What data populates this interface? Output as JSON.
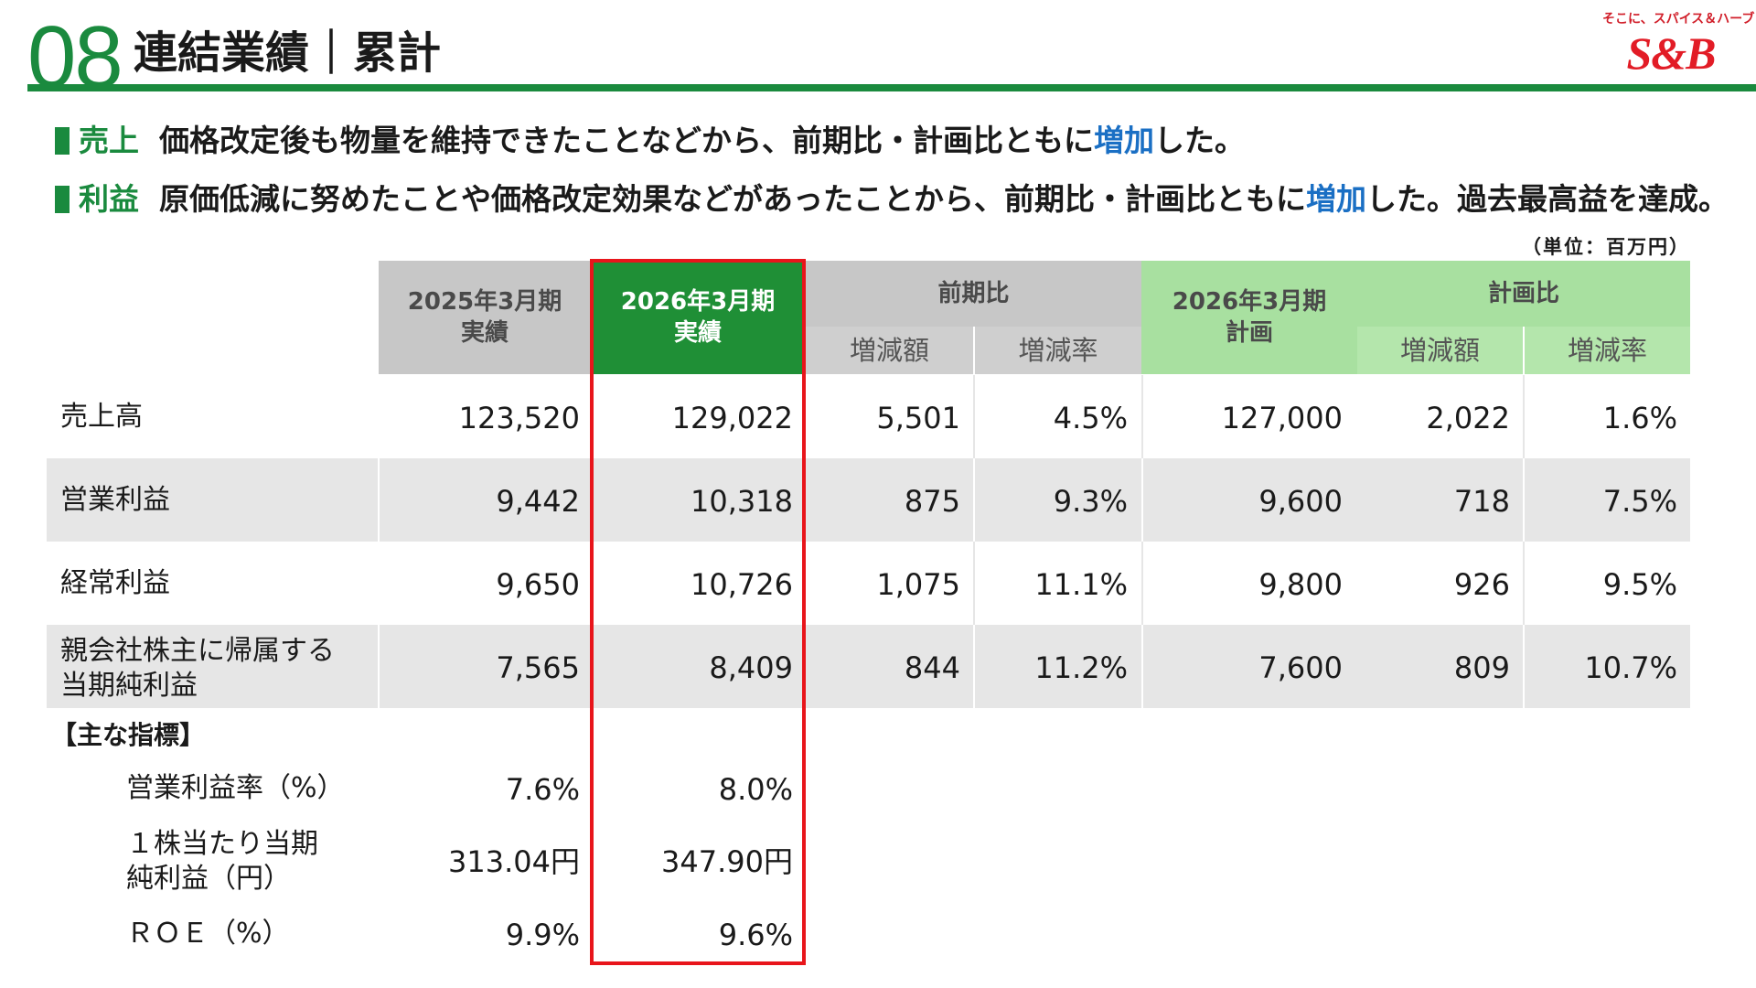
{
  "header": {
    "slide_number": "08",
    "title": "連結業績｜累計",
    "logo_tagline": "そこに、スパイス＆ハーブ",
    "logo_text": "S&B",
    "accent_color": "#1a8a3e"
  },
  "summary": [
    {
      "tag": "売上",
      "text_before": "価格改定後も物量を維持できたことなどから、前期比・計画比ともに",
      "highlight": "増加",
      "text_after": "した。"
    },
    {
      "tag": "利益",
      "text_before": "原価低減に努めたことや価格改定効果などがあったことから、前期比・計画比ともに",
      "highlight": "増加",
      "text_after": "した。過去最高益を達成。"
    }
  ],
  "unit_note": "（単位：百万円）",
  "table": {
    "headers": {
      "prev_actual": [
        "2025年3月期",
        "実績"
      ],
      "curr_actual": [
        "2026年3月期",
        "実績"
      ],
      "yoy": "前期比",
      "plan": [
        "2026年3月期",
        "計画"
      ],
      "vs_plan": "計画比",
      "change_amount": "増減額",
      "change_rate": "増減率"
    },
    "rows": [
      {
        "label": [
          "売上高"
        ],
        "prev": "123,520",
        "curr": "129,022",
        "yoy_amt": "5,501",
        "yoy_rate": "4.5%",
        "plan": "127,000",
        "plan_amt": "2,022",
        "plan_rate": "1.6%"
      },
      {
        "label": [
          "営業利益"
        ],
        "prev": "9,442",
        "curr": "10,318",
        "yoy_amt": "875",
        "yoy_rate": "9.3%",
        "plan": "9,600",
        "plan_amt": "718",
        "plan_rate": "7.5%"
      },
      {
        "label": [
          "経常利益"
        ],
        "prev": "9,650",
        "curr": "10,726",
        "yoy_amt": "1,075",
        "yoy_rate": "11.1%",
        "plan": "9,800",
        "plan_amt": "926",
        "plan_rate": "9.5%"
      },
      {
        "label": [
          "親会社株主に帰属する",
          "当期純利益"
        ],
        "prev": "7,565",
        "curr": "8,409",
        "yoy_amt": "844",
        "yoy_rate": "11.2%",
        "plan": "7,600",
        "plan_amt": "809",
        "plan_rate": "10.7%"
      }
    ],
    "kpi_heading": "【主な指標】",
    "kpis": [
      {
        "label": [
          "営業利益率（%）"
        ],
        "prev": "7.6%",
        "curr": "8.0%"
      },
      {
        "label": [
          "１株当たり当期",
          "純利益（円）"
        ],
        "prev": "313.04円",
        "curr": "347.90円"
      },
      {
        "label": [
          "ＲＯＥ（%）"
        ],
        "prev": "9.9%",
        "curr": "9.6%"
      }
    ]
  }
}
